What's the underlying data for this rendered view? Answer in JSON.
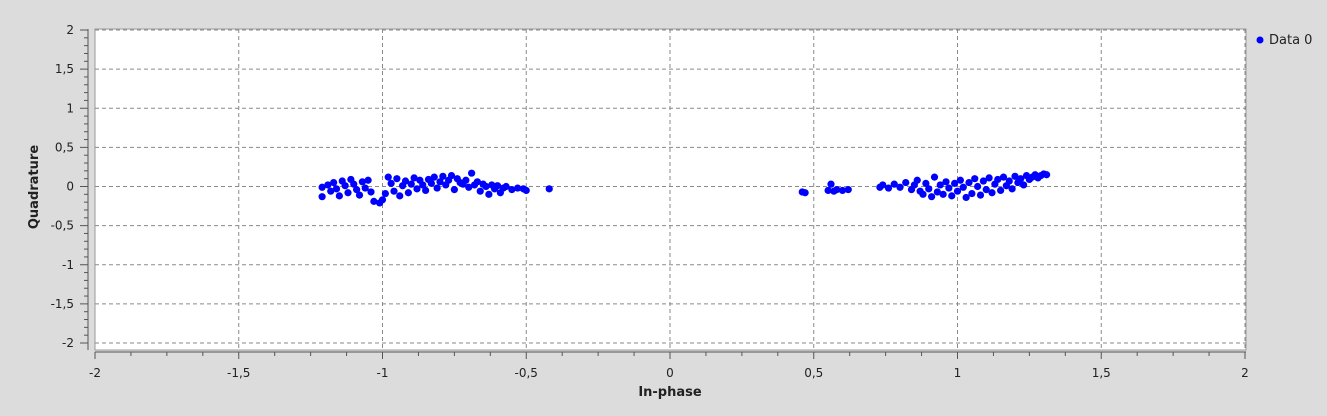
{
  "chart_data": {
    "type": "scatter",
    "title": "",
    "xlabel": "In-phase",
    "ylabel": "Quadrature",
    "xlim": [
      -2,
      2
    ],
    "ylim": [
      -2,
      2
    ],
    "x_ticks": [
      -2,
      -1.5,
      -1,
      -0.5,
      0,
      0.5,
      1,
      1.5,
      2
    ],
    "x_tick_labels": [
      "-2",
      "-1,5",
      "-1",
      "-0,5",
      "0",
      "0,5",
      "1",
      "1,5",
      "2"
    ],
    "y_ticks": [
      2,
      1.5,
      1,
      0.5,
      0,
      -0.5,
      -1,
      -1.5,
      -2
    ],
    "y_tick_labels": [
      "2",
      "1,5",
      "1",
      "0,5",
      "0",
      "-0,5",
      "-1",
      "-1,5",
      "-2"
    ],
    "grid": true,
    "legend_position": "right",
    "colors": {
      "series": "#0000ff",
      "plot_bg": "#ffffff",
      "page_bg": "#dcdcdc",
      "grid": "#8a8a8a"
    },
    "series": [
      {
        "name": "Data 0",
        "points": [
          [
            -1.21,
            -0.01
          ],
          [
            -1.21,
            -0.13
          ],
          [
            -1.19,
            0.02
          ],
          [
            -1.18,
            -0.06
          ],
          [
            -1.17,
            0.05
          ],
          [
            -1.16,
            -0.03
          ],
          [
            -1.15,
            -0.12
          ],
          [
            -1.14,
            0.07
          ],
          [
            -1.13,
            0.01
          ],
          [
            -1.12,
            -0.08
          ],
          [
            -1.11,
            0.09
          ],
          [
            -1.1,
            0.03
          ],
          [
            -1.09,
            -0.04
          ],
          [
            -1.08,
            -0.11
          ],
          [
            -1.07,
            0.06
          ],
          [
            -1.06,
            -0.02
          ],
          [
            -1.05,
            0.08
          ],
          [
            -1.04,
            -0.07
          ],
          [
            -1.03,
            -0.19
          ],
          [
            -1.01,
            -0.21
          ],
          [
            -1.0,
            -0.17
          ],
          [
            -0.99,
            -0.09
          ],
          [
            -0.98,
            0.12
          ],
          [
            -0.97,
            0.04
          ],
          [
            -0.96,
            -0.06
          ],
          [
            -0.95,
            0.1
          ],
          [
            -0.94,
            -0.12
          ],
          [
            -0.93,
            0.01
          ],
          [
            -0.92,
            0.07
          ],
          [
            -0.91,
            -0.08
          ],
          [
            -0.9,
            0.03
          ],
          [
            -0.89,
            0.11
          ],
          [
            -0.88,
            -0.03
          ],
          [
            -0.87,
            0.08
          ],
          [
            -0.86,
            0.02
          ],
          [
            -0.85,
            -0.05
          ],
          [
            -0.84,
            0.09
          ],
          [
            -0.83,
            0.04
          ],
          [
            -0.82,
            0.12
          ],
          [
            -0.81,
            -0.02
          ],
          [
            -0.8,
            0.06
          ],
          [
            -0.79,
            0.13
          ],
          [
            -0.78,
            0.02
          ],
          [
            -0.77,
            0.08
          ],
          [
            -0.76,
            0.14
          ],
          [
            -0.75,
            -0.04
          ],
          [
            -0.74,
            0.1
          ],
          [
            -0.73,
            0.05
          ],
          [
            -0.72,
            0.03
          ],
          [
            -0.71,
            0.08
          ],
          [
            -0.7,
            -0.01
          ],
          [
            -0.69,
            0.17
          ],
          [
            -0.68,
            0.02
          ],
          [
            -0.67,
            0.06
          ],
          [
            -0.66,
            -0.06
          ],
          [
            -0.65,
            0.03
          ],
          [
            -0.64,
            0.0
          ],
          [
            -0.63,
            -0.1
          ],
          [
            -0.62,
            0.02
          ],
          [
            -0.61,
            -0.03
          ],
          [
            -0.6,
            0.01
          ],
          [
            -0.59,
            -0.08
          ],
          [
            -0.58,
            -0.02
          ],
          [
            -0.57,
            0.0
          ],
          [
            -0.55,
            -0.04
          ],
          [
            -0.53,
            -0.02
          ],
          [
            -0.51,
            -0.03
          ],
          [
            -0.5,
            -0.05
          ],
          [
            -0.42,
            -0.03
          ],
          [
            0.46,
            -0.07
          ],
          [
            0.47,
            -0.08
          ],
          [
            0.55,
            -0.05
          ],
          [
            0.56,
            0.03
          ],
          [
            0.57,
            -0.06
          ],
          [
            0.58,
            -0.04
          ],
          [
            0.6,
            -0.05
          ],
          [
            0.62,
            -0.04
          ],
          [
            0.73,
            -0.01
          ],
          [
            0.74,
            0.02
          ],
          [
            0.76,
            -0.02
          ],
          [
            0.78,
            0.03
          ],
          [
            0.8,
            -0.01
          ],
          [
            0.82,
            0.05
          ],
          [
            0.84,
            -0.04
          ],
          [
            0.85,
            0.02
          ],
          [
            0.86,
            0.08
          ],
          [
            0.87,
            -0.06
          ],
          [
            0.88,
            -0.1
          ],
          [
            0.89,
            0.04
          ],
          [
            0.9,
            -0.03
          ],
          [
            0.91,
            -0.13
          ],
          [
            0.92,
            0.12
          ],
          [
            0.93,
            -0.07
          ],
          [
            0.94,
            0.02
          ],
          [
            0.95,
            -0.1
          ],
          [
            0.96,
            0.06
          ],
          [
            0.97,
            -0.02
          ],
          [
            0.98,
            -0.12
          ],
          [
            0.99,
            0.04
          ],
          [
            1.0,
            -0.06
          ],
          [
            1.01,
            0.08
          ],
          [
            1.02,
            -0.01
          ],
          [
            1.03,
            -0.14
          ],
          [
            1.04,
            0.05
          ],
          [
            1.05,
            -0.09
          ],
          [
            1.06,
            0.1
          ],
          [
            1.07,
            0.0
          ],
          [
            1.08,
            -0.11
          ],
          [
            1.09,
            0.07
          ],
          [
            1.1,
            -0.04
          ],
          [
            1.11,
            0.11
          ],
          [
            1.12,
            -0.08
          ],
          [
            1.13,
            0.03
          ],
          [
            1.14,
            0.09
          ],
          [
            1.15,
            -0.05
          ],
          [
            1.16,
            0.12
          ],
          [
            1.17,
            0.01
          ],
          [
            1.18,
            0.07
          ],
          [
            1.19,
            -0.03
          ],
          [
            1.2,
            0.13
          ],
          [
            1.21,
            0.05
          ],
          [
            1.22,
            0.1
          ],
          [
            1.23,
            0.02
          ],
          [
            1.24,
            0.14
          ],
          [
            1.25,
            0.09
          ],
          [
            1.26,
            0.12
          ],
          [
            1.27,
            0.15
          ],
          [
            1.28,
            0.11
          ],
          [
            1.29,
            0.14
          ],
          [
            1.3,
            0.16
          ],
          [
            1.31,
            0.15
          ]
        ]
      }
    ]
  }
}
